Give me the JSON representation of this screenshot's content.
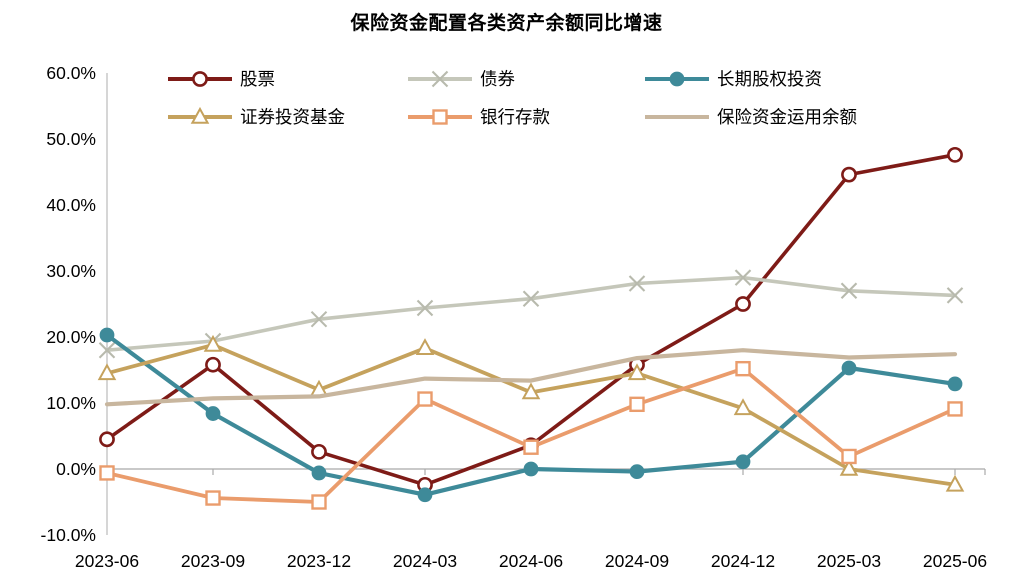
{
  "chart_data": {
    "type": "line",
    "title": "保险资金配置各类资产余额同比增速",
    "categories": [
      "2023-06",
      "2023-09",
      "2023-12",
      "2024-03",
      "2024-06",
      "2024-09",
      "2024-12",
      "2025-03",
      "2025-06"
    ],
    "series": [
      {
        "name": "股票",
        "color": "#7E1B17",
        "marker": "circle-open",
        "values": [
          4.5,
          15.8,
          2.6,
          -2.4,
          3.6,
          15.8,
          25.0,
          44.6,
          47.6
        ]
      },
      {
        "name": "债券",
        "color": "#C5C7BA",
        "marker": "x",
        "values": [
          18.0,
          19.4,
          22.7,
          24.4,
          25.8,
          28.1,
          29.0,
          27.0,
          26.3
        ]
      },
      {
        "name": "长期股权投资",
        "color": "#3E8A99",
        "marker": "circle-filled",
        "values": [
          20.3,
          8.4,
          -0.6,
          -3.9,
          0.0,
          -0.4,
          1.1,
          15.3,
          12.9
        ]
      },
      {
        "name": "证券投资基金",
        "color": "#C5A25D",
        "marker": "triangle-open",
        "values": [
          14.5,
          18.8,
          12.0,
          18.3,
          11.6,
          14.5,
          9.2,
          0.0,
          -2.4
        ]
      },
      {
        "name": "银行存款",
        "color": "#EA9C6C",
        "marker": "square-open",
        "values": [
          -0.6,
          -4.4,
          -5.0,
          10.6,
          3.3,
          9.8,
          15.2,
          1.9,
          9.1
        ]
      },
      {
        "name": "保险资金运用余额",
        "color": "#C8B69E",
        "marker": "none",
        "values": [
          9.8,
          10.7,
          11.0,
          13.7,
          13.4,
          16.8,
          18.0,
          16.9,
          17.4
        ]
      }
    ],
    "ylim": [
      -10,
      60
    ],
    "ytick_step": 10,
    "ytick_labels": [
      "60.0%",
      "50.0%",
      "40.0%",
      "30.0%",
      "20.0%",
      "10.0%",
      "0.0%",
      "-10.0%"
    ],
    "ylabel": "",
    "xlabel": "",
    "grid": "zero-line-only",
    "legend_position": "top",
    "axis_color": "#A9A9A9",
    "yaxis_line_color": "#BFBFBF",
    "text_color": "#000000"
  }
}
